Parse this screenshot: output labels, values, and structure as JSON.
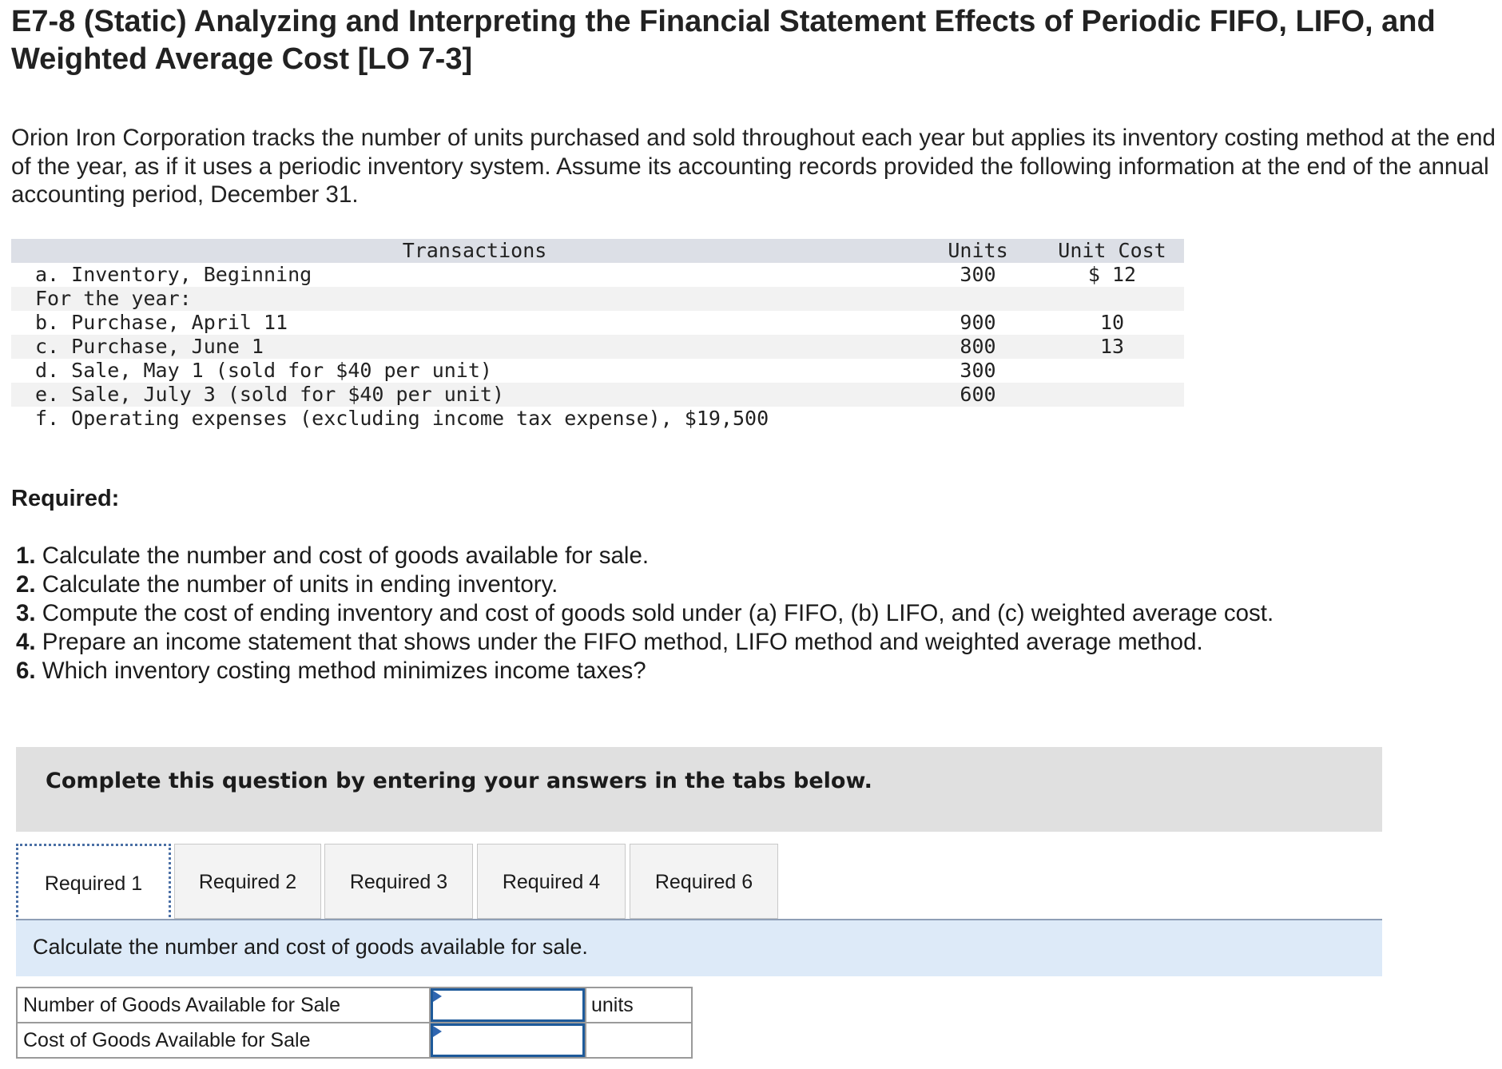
{
  "title": "E7-8 (Static) Analyzing and Interpreting the Financial Statement Effects of Periodic FIFO, LIFO, and Weighted Average Cost [LO 7-3]",
  "intro": "Orion Iron Corporation tracks the number of units purchased and sold throughout each year but applies its inventory costing method at the end of the year, as if it uses a periodic inventory system. Assume its accounting records provided the following information at the end of the annual accounting period, December 31.",
  "transactions": {
    "headers": {
      "desc": "Transactions",
      "units": "Units",
      "cost": "Unit Cost"
    },
    "rows": [
      {
        "desc": "a. Inventory, Beginning",
        "units": "300",
        "cost": "$ 12"
      },
      {
        "desc": "For the year:",
        "units": "",
        "cost": ""
      },
      {
        "desc": "b. Purchase, April 11",
        "units": "900",
        "cost": "10"
      },
      {
        "desc": "c. Purchase, June 1",
        "units": "800",
        "cost": "13"
      },
      {
        "desc": "d. Sale, May 1 (sold for $40 per unit)",
        "units": "300",
        "cost": ""
      },
      {
        "desc": "e. Sale, July 3 (sold for $40 per unit)",
        "units": "600",
        "cost": ""
      },
      {
        "desc": "f. Operating expenses (excluding income tax expense), $19,500",
        "units": "",
        "cost": ""
      }
    ]
  },
  "required_label": "Required:",
  "requirements": [
    {
      "num": "1.",
      "text": " Calculate the number and cost of goods available for sale."
    },
    {
      "num": "2.",
      "text": " Calculate the number of units in ending inventory."
    },
    {
      "num": "3.",
      "text": " Compute the cost of ending inventory and cost of goods sold under (a) FIFO, (b) LIFO, and (c) weighted average cost."
    },
    {
      "num": "4.",
      "text": " Prepare an income statement that shows under the FIFO method, LIFO method and weighted average method."
    },
    {
      "num": "6.",
      "text": " Which inventory costing method minimizes income taxes?"
    }
  ],
  "banner": "Complete this question by entering your answers in the tabs below.",
  "tabs": [
    "Required 1",
    "Required 2",
    "Required 3",
    "Required 4",
    "Required 6"
  ],
  "panel_instruction": "Calculate the number and cost of goods available for sale.",
  "answer_rows": [
    {
      "label": "Number of Goods Available for Sale",
      "value": "",
      "unit": "units"
    },
    {
      "label": "Cost of Goods Available for Sale",
      "value": "",
      "unit": ""
    }
  ]
}
